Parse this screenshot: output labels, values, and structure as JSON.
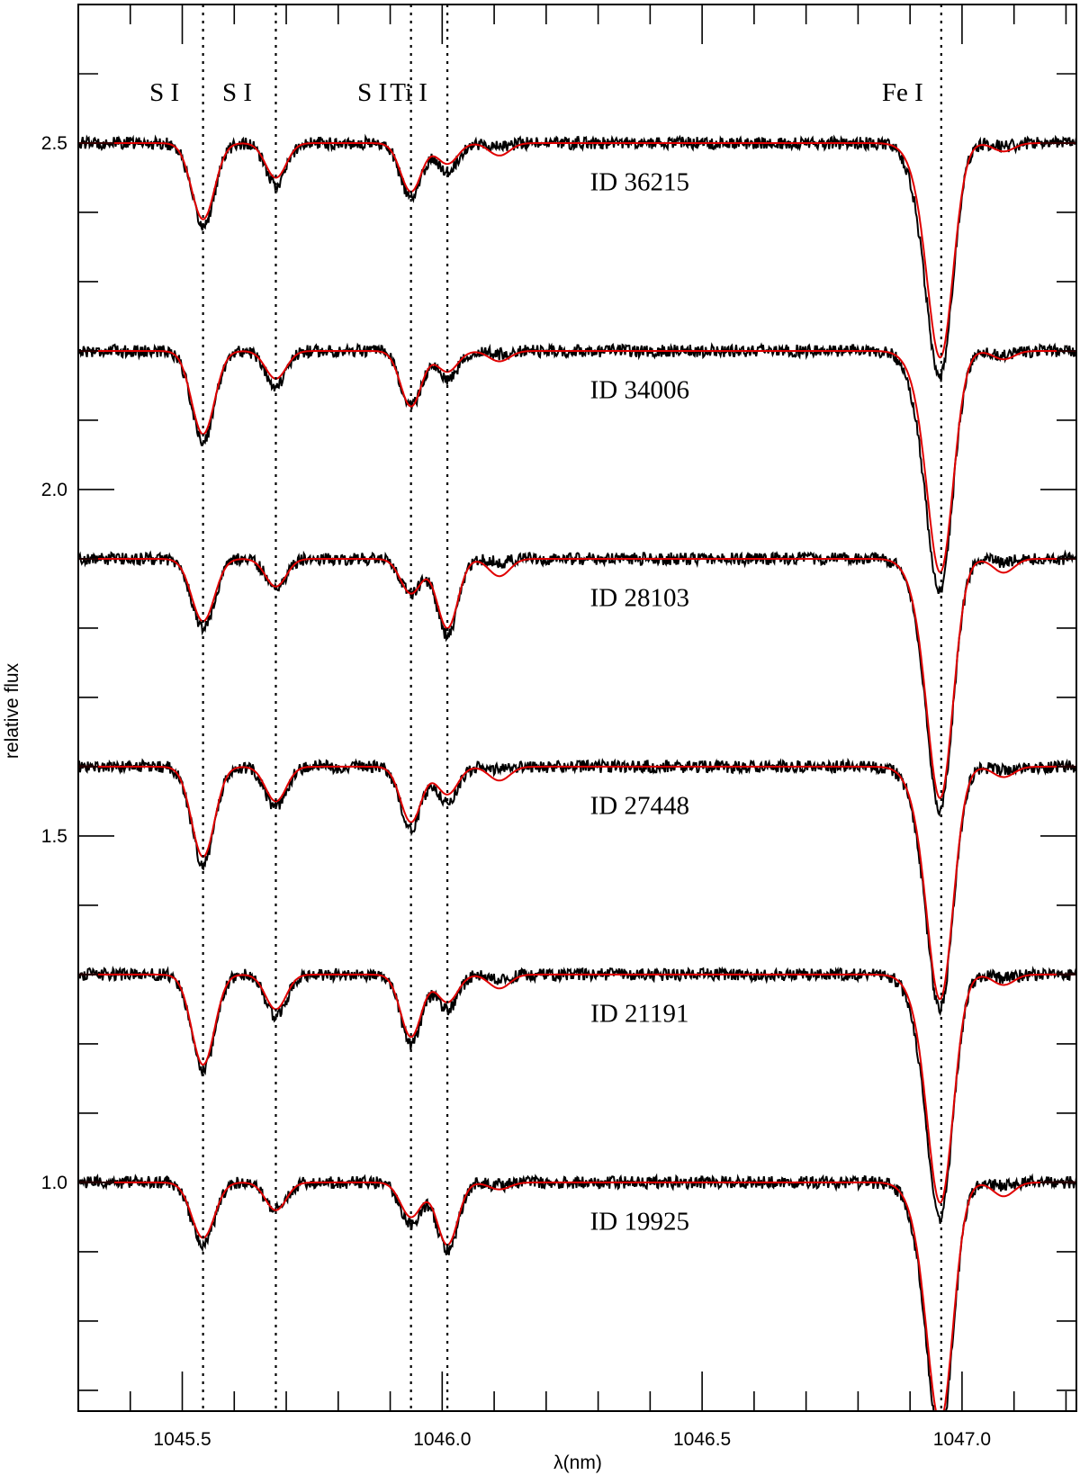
{
  "chart_data": {
    "type": "line",
    "xlabel": "λ(nm)",
    "ylabel": "relative flux",
    "xlim": [
      1045.3,
      1047.22
    ],
    "ylim": [
      0.67,
      2.7
    ],
    "x_ticks": [
      1045.5,
      1046.0,
      1046.5,
      1047.0
    ],
    "x_tick_labels": [
      "1045.5",
      "1046.0",
      "1046.5",
      "1047.0"
    ],
    "x_minor_step": 0.1,
    "y_ticks": [
      1.0,
      1.5,
      2.0,
      2.5
    ],
    "y_tick_labels": [
      "1.0",
      "1.5",
      "2.0",
      "2.5"
    ],
    "y_minor_step": 0.1,
    "grid": false,
    "colors": {
      "observed": "#000000",
      "synthetic": "#e00000",
      "axes": "#000000"
    },
    "line_markers": [
      {
        "label": "S I",
        "x": 1045.54
      },
      {
        "label": "S I",
        "x": 1045.68
      },
      {
        "label": "S I",
        "x": 1045.94
      },
      {
        "label": "Ti I",
        "x": 1046.01
      },
      {
        "label": "Fe I",
        "x": 1046.96
      }
    ],
    "features": [
      {
        "id": "S1",
        "x": 1045.54,
        "width": 0.022
      },
      {
        "id": "S2",
        "x": 1045.68,
        "width": 0.02
      },
      {
        "id": "S3",
        "x": 1045.94,
        "width": 0.02
      },
      {
        "id": "Ti",
        "x": 1046.01,
        "width": 0.02
      },
      {
        "id": "blend",
        "x": 1046.11,
        "width": 0.02
      },
      {
        "id": "Fe",
        "x": 1046.96,
        "width": 0.024
      },
      {
        "id": "Fe_wing",
        "x": 1046.93,
        "width": 0.028
      },
      {
        "id": "red1",
        "x": 1047.08,
        "width": 0.02
      }
    ],
    "series": [
      {
        "name": "ID 36215",
        "continuum": 2.5,
        "depths_model": {
          "S1": 0.11,
          "S2": 0.05,
          "S3": 0.07,
          "Ti": 0.03,
          "blend": 0.018,
          "Fe": 0.28,
          "Fe_wing": 0.05,
          "red1": 0.012
        },
        "depths_observed": {
          "S1": 0.12,
          "S2": 0.06,
          "S3": 0.08,
          "Ti": 0.04,
          "blend": 0.005,
          "Fe": 0.29,
          "Fe_wing": 0.08,
          "red1": 0.005
        }
      },
      {
        "name": "ID 34006",
        "continuum": 2.2,
        "depths_model": {
          "S1": 0.12,
          "S2": 0.04,
          "S3": 0.08,
          "Ti": 0.03,
          "blend": 0.015,
          "Fe": 0.29,
          "Fe_wing": 0.05,
          "red1": 0.012
        },
        "depths_observed": {
          "S1": 0.13,
          "S2": 0.05,
          "S3": 0.08,
          "Ti": 0.04,
          "blend": 0.005,
          "Fe": 0.3,
          "Fe_wing": 0.08,
          "red1": 0.005
        }
      },
      {
        "name": "ID 28103",
        "continuum": 1.9,
        "depths_model": {
          "S1": 0.09,
          "S2": 0.04,
          "S3": 0.05,
          "Ti": 0.1,
          "blend": 0.025,
          "Fe": 0.31,
          "Fe_wing": 0.06,
          "red1": 0.02
        },
        "depths_observed": {
          "S1": 0.1,
          "S2": 0.04,
          "S3": 0.05,
          "Ti": 0.11,
          "blend": 0.005,
          "Fe": 0.32,
          "Fe_wing": 0.07,
          "red1": 0.005
        }
      },
      {
        "name": "ID 27448",
        "continuum": 1.6,
        "depths_model": {
          "S1": 0.13,
          "S2": 0.05,
          "S3": 0.08,
          "Ti": 0.04,
          "blend": 0.02,
          "Fe": 0.3,
          "Fe_wing": 0.06,
          "red1": 0.015
        },
        "depths_observed": {
          "S1": 0.14,
          "S2": 0.06,
          "S3": 0.09,
          "Ti": 0.05,
          "blend": 0.005,
          "Fe": 0.31,
          "Fe_wing": 0.07,
          "red1": 0.005
        }
      },
      {
        "name": "ID 21191",
        "continuum": 1.3,
        "depths_model": {
          "S1": 0.13,
          "S2": 0.05,
          "S3": 0.09,
          "Ti": 0.04,
          "blend": 0.02,
          "Fe": 0.3,
          "Fe_wing": 0.05,
          "red1": 0.015
        },
        "depths_observed": {
          "S1": 0.14,
          "S2": 0.06,
          "S3": 0.1,
          "Ti": 0.05,
          "blend": 0.008,
          "Fe": 0.31,
          "Fe_wing": 0.07,
          "red1": 0.005
        }
      },
      {
        "name": "ID 19925",
        "continuum": 1.0,
        "depths_model": {
          "S1": 0.08,
          "S2": 0.04,
          "S3": 0.05,
          "Ti": 0.09,
          "blend": 0.01,
          "Fe": 0.31,
          "Fe_wing": 0.06,
          "red1": 0.02
        },
        "depths_observed": {
          "S1": 0.09,
          "S2": 0.04,
          "S3": 0.06,
          "Ti": 0.1,
          "blend": 0.004,
          "Fe": 0.33,
          "Fe_wing": 0.07,
          "red1": 0.005
        }
      }
    ],
    "series_label_x": 1046.38,
    "series_label_offset": -0.055
  }
}
